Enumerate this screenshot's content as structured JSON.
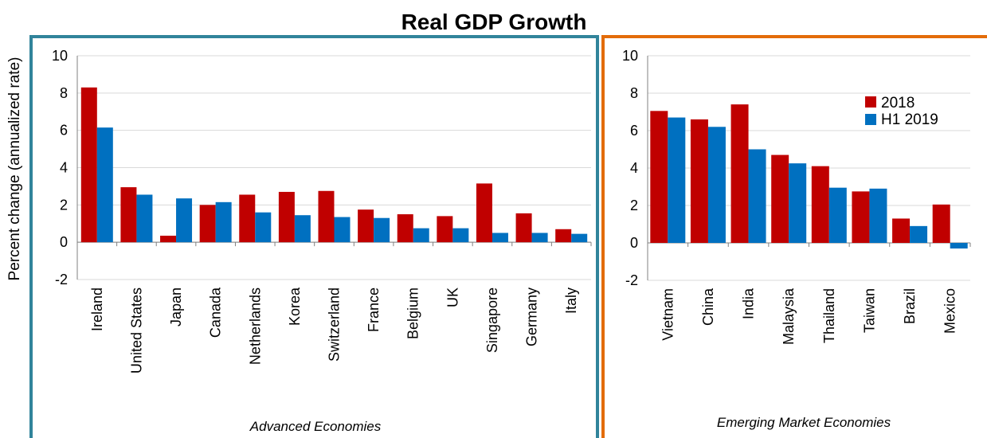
{
  "title": "Real GDP Growth",
  "ylabel": "Percent change (annualized rate)",
  "colors": {
    "series_2018": "#c00000",
    "series_h1_2019": "#0070c0",
    "panel_advanced_border": "#31849b",
    "panel_emerging_border": "#e36c09",
    "gridline": "#d9d9d9",
    "axis": "#808080"
  },
  "chart_data": [
    {
      "type": "bar",
      "panel": "advanced",
      "caption": "Advanced Economies",
      "ylim": [
        -2,
        10
      ],
      "yticks": [
        -2,
        0,
        2,
        4,
        6,
        8,
        10
      ],
      "grid": true,
      "categories": [
        "Ireland",
        "United States",
        "Japan",
        "Canada",
        "Netherlands",
        "Korea",
        "Switzerland",
        "France",
        "Belgium",
        "UK",
        "Singapore",
        "Germany",
        "Italy"
      ],
      "series": [
        {
          "name": "2018",
          "values": [
            8.3,
            2.95,
            0.35,
            2.0,
            2.55,
            2.7,
            2.75,
            1.75,
            1.5,
            1.4,
            3.15,
            1.55,
            0.7
          ]
        },
        {
          "name": "H1 2019",
          "values": [
            6.15,
            2.55,
            2.35,
            2.15,
            1.6,
            1.45,
            1.35,
            1.3,
            0.75,
            0.75,
            0.5,
            0.5,
            0.45
          ]
        }
      ]
    },
    {
      "type": "bar",
      "panel": "emerging",
      "caption": "Emerging Market Economies",
      "ylim": [
        -2,
        10
      ],
      "yticks": [
        -2,
        0,
        2,
        4,
        6,
        8,
        10
      ],
      "grid": true,
      "legend": "top-right",
      "categories": [
        "Vietnam",
        "China",
        "India",
        "Malaysia",
        "Thailand",
        "Taiwan",
        "Brazil",
        "Mexico"
      ],
      "series": [
        {
          "name": "2018",
          "values": [
            7.05,
            6.6,
            7.4,
            4.7,
            4.1,
            2.75,
            1.3,
            2.05
          ]
        },
        {
          "name": "H1 2019",
          "values": [
            6.7,
            6.2,
            5.0,
            4.25,
            2.95,
            2.9,
            0.9,
            -0.3
          ]
        }
      ]
    }
  ]
}
